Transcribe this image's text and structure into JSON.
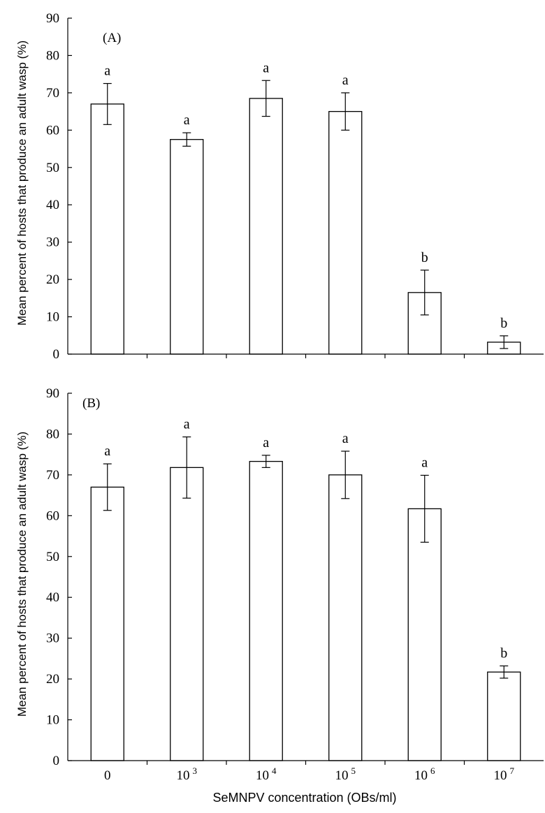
{
  "chart_data": [
    {
      "type": "bar",
      "panel_label": "(A)",
      "categories": [
        "0",
        "10^3",
        "10^4",
        "10^5",
        "10^6",
        "10^7"
      ],
      "ylabel": "Mean percent of hosts that produce an adult wasp (%)",
      "ylim": [
        0,
        90
      ],
      "yticks": [
        0,
        10,
        20,
        30,
        40,
        50,
        60,
        70,
        80,
        90
      ],
      "series": [
        {
          "values": [
            67,
            57.5,
            68.5,
            65,
            16.5,
            3.2
          ],
          "error": [
            5.5,
            1.8,
            4.8,
            5,
            6,
            1.7
          ],
          "significance": [
            "a",
            "a",
            "a",
            "a",
            "b",
            "b"
          ]
        }
      ]
    },
    {
      "type": "bar",
      "panel_label": "(B)",
      "categories": [
        "0",
        "10^3",
        "10^4",
        "10^5",
        "10^6",
        "10^7"
      ],
      "ylabel": "Mean percent of hosts that produce an adult wasp (%)",
      "xlabel": "SeMNPV concentration (OBs/ml)",
      "ylim": [
        0,
        90
      ],
      "yticks": [
        0,
        10,
        20,
        30,
        40,
        50,
        60,
        70,
        80,
        90
      ],
      "series": [
        {
          "values": [
            67,
            71.8,
            73.3,
            70,
            61.7,
            21.7
          ],
          "error": [
            5.7,
            7.5,
            1.5,
            5.8,
            8.2,
            1.5
          ],
          "significance": [
            "a",
            "a",
            "a",
            "a",
            "a",
            "b"
          ]
        }
      ]
    }
  ],
  "x_tick_labels": [
    {
      "base": "0",
      "exp": ""
    },
    {
      "base": "10",
      "exp": "3"
    },
    {
      "base": "10",
      "exp": "4"
    },
    {
      "base": "10",
      "exp": "5"
    },
    {
      "base": "10",
      "exp": "6"
    },
    {
      "base": "10",
      "exp": "7"
    }
  ]
}
